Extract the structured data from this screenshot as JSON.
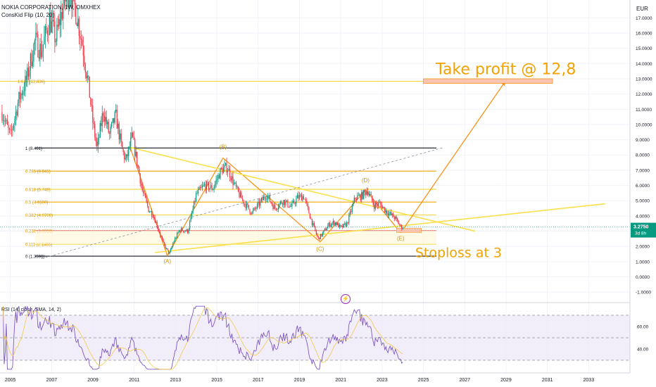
{
  "header": {
    "symbol": "NOKIA CORPORATION, 1W, OMXHEX",
    "indicator": "ConsKid Flip (10, 20)",
    "currency": "EUR"
  },
  "price_axis": {
    "ticks": [
      "17.0000",
      "16.0000",
      "15.0000",
      "14.0000",
      "13.0000",
      "12.0000",
      "11.0000",
      "10.0000",
      "9.0000",
      "8.0000",
      "7.0000",
      "6.0000",
      "5.0000",
      "4.0000",
      "3.0000",
      "2.0000",
      "1.0000",
      "0.0000",
      "-1.0000"
    ],
    "last_price": "3.2750",
    "countdown": "3d 8h"
  },
  "rsi_axis": {
    "ticks": [
      "60.00",
      "40.00"
    ]
  },
  "x_axis": {
    "ticks": [
      "2005",
      "2007",
      "2009",
      "2011",
      "2013",
      "2015",
      "2017",
      "2019",
      "2021",
      "2023",
      "2025",
      "2027",
      "2029",
      "2031",
      "2033"
    ]
  },
  "fib_levels": [
    {
      "label": "1 (8.461)",
      "value": 8.461,
      "color": "#131722"
    },
    {
      "label": "0.786 (6.941)",
      "value": 6.941,
      "color": "#f2a900"
    },
    {
      "label": "0.618 (5.748)",
      "value": 5.748,
      "color": "#f2d535"
    },
    {
      "label": "0.5 (4.9100)",
      "value": 4.91,
      "color": "#f2a900"
    },
    {
      "label": "0.382 (4.0700)",
      "value": 4.07,
      "color": "#f2d535"
    },
    {
      "label": "0.236 (3.0350)",
      "value": 3.035,
      "color": "#e05252"
    },
    {
      "label": "0.111 (2.1465)",
      "value": 2.1465,
      "color": "#f2d535"
    },
    {
      "label": "0 (1.3590)",
      "value": 1.359,
      "color": "#131722"
    },
    {
      "label": "1.618 (12.836)",
      "value": 12.836,
      "color": "#f2d535"
    }
  ],
  "wave_labels": [
    {
      "text": "(A)",
      "date": 2012.6,
      "value": 0.9
    },
    {
      "text": "(B)",
      "date": 2015.3,
      "value": 8.4
    },
    {
      "text": "(C)",
      "date": 2020.0,
      "value": 1.7
    },
    {
      "text": "(D)",
      "date": 2022.2,
      "value": 6.2
    },
    {
      "text": "(E)",
      "date": 2023.9,
      "value": 2.4
    }
  ],
  "annotations": {
    "take_profit": "Take profit @ 12,8",
    "stoploss": "Stoploss at 3"
  },
  "chart_data": [
    {
      "type": "line",
      "title": "NOKIA CORPORATION, 1W, OMXHEX",
      "ylabel": "EUR",
      "xlim": [
        2004.5,
        2035.0
      ],
      "ylim": [
        -1.5,
        17.8
      ],
      "series": [],
      "price_path": [
        [
          2004.6,
          10.8
        ],
        [
          2005.0,
          9.2
        ],
        [
          2005.4,
          11.6
        ],
        [
          2005.8,
          13.0
        ],
        [
          2006.2,
          15.5
        ],
        [
          2006.5,
          14.8
        ],
        [
          2006.9,
          16.9
        ],
        [
          2007.2,
          15.6
        ],
        [
          2007.6,
          18.0
        ],
        [
          2007.9,
          18.8
        ],
        [
          2008.2,
          17.3
        ],
        [
          2008.5,
          15.2
        ],
        [
          2008.8,
          12.4
        ],
        [
          2009.0,
          10.1
        ],
        [
          2009.2,
          8.4
        ],
        [
          2009.5,
          10.9
        ],
        [
          2009.8,
          9.3
        ],
        [
          2010.1,
          10.6
        ],
        [
          2010.4,
          8.4
        ],
        [
          2010.6,
          7.6
        ],
        [
          2010.9,
          9.2
        ],
        [
          2011.1,
          7.8
        ],
        [
          2011.4,
          5.6
        ],
        [
          2011.7,
          4.4
        ],
        [
          2011.9,
          4.1
        ],
        [
          2012.1,
          3.4
        ],
        [
          2012.4,
          2.2
        ],
        [
          2012.7,
          1.5
        ],
        [
          2012.9,
          2.3
        ],
        [
          2013.2,
          3.1
        ],
        [
          2013.6,
          3.0
        ],
        [
          2014.0,
          5.4
        ],
        [
          2014.4,
          6.0
        ],
        [
          2014.8,
          5.8
        ],
        [
          2015.2,
          7.0
        ],
        [
          2015.5,
          7.2
        ],
        [
          2015.8,
          6.2
        ],
        [
          2016.0,
          5.6
        ],
        [
          2016.3,
          4.9
        ],
        [
          2016.7,
          4.2
        ],
        [
          2017.0,
          4.7
        ],
        [
          2017.4,
          5.4
        ],
        [
          2017.8,
          4.5
        ],
        [
          2018.2,
          5.0
        ],
        [
          2018.6,
          4.6
        ],
        [
          2018.9,
          5.2
        ],
        [
          2019.2,
          5.3
        ],
        [
          2019.6,
          3.6
        ],
        [
          2019.9,
          2.5
        ],
        [
          2020.1,
          2.8
        ],
        [
          2020.4,
          3.4
        ],
        [
          2020.7,
          3.6
        ],
        [
          2021.0,
          3.2
        ],
        [
          2021.3,
          3.5
        ],
        [
          2021.7,
          5.2
        ],
        [
          2022.0,
          5.3
        ],
        [
          2022.3,
          5.7
        ],
        [
          2022.6,
          4.7
        ],
        [
          2022.9,
          4.8
        ],
        [
          2023.2,
          4.3
        ],
        [
          2023.6,
          3.9
        ],
        [
          2023.9,
          3.3
        ],
        [
          2024.0,
          3.27
        ]
      ],
      "rsi": {
        "name": "RSI (14, close, SMA, 14, 2)",
        "ylim": [
          0,
          100
        ],
        "levels": [
          70,
          50,
          30
        ]
      }
    }
  ]
}
